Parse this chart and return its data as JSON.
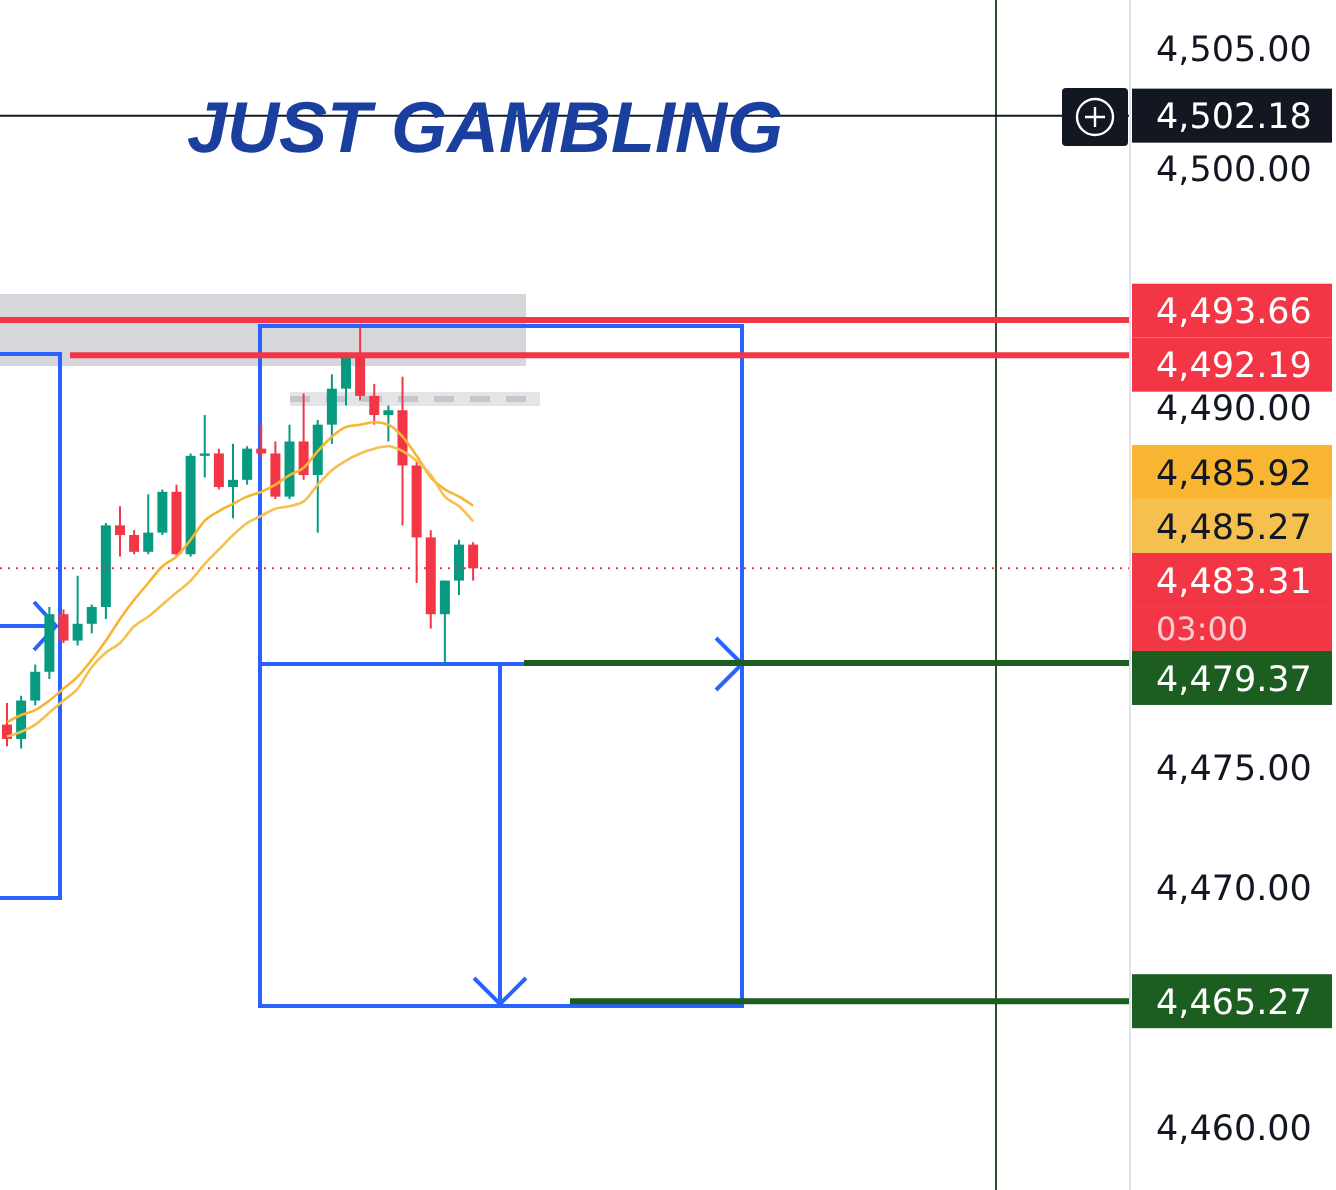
{
  "chart_data": {
    "type": "candlestick",
    "title": "JUST GAMBLING",
    "categories": [
      null,
      null,
      null,
      null,
      null,
      null,
      null,
      null,
      null,
      null,
      null,
      null,
      null,
      null,
      null,
      null,
      null,
      null,
      null,
      null,
      null,
      null,
      null,
      null,
      null,
      null,
      null,
      null,
      null,
      null,
      null,
      null,
      null,
      null,
      null,
      null,
      null,
      null,
      null,
      null,
      null,
      null,
      null,
      null,
      null,
      null,
      null,
      null,
      null,
      null,
      null,
      null,
      null,
      null,
      null,
      null,
      null,
      null,
      null,
      null,
      null,
      null,
      null,
      null,
      null,
      null,
      null,
      null,
      null,
      null,
      null,
      null,
      null,
      null,
      null,
      null,
      null,
      null,
      null,
      null
    ],
    "ohlc": [
      [
        4476.8,
        4477.7,
        4475.9,
        4476.2
      ],
      [
        4476.2,
        4478.0,
        4475.8,
        4477.8
      ],
      [
        4477.8,
        4479.3,
        4477.6,
        4479.0
      ],
      [
        4479.0,
        4481.7,
        4478.7,
        4481.4
      ],
      [
        4481.4,
        4481.6,
        4480.2,
        4480.3
      ],
      [
        4480.3,
        4483.0,
        4480.1,
        4481.0
      ],
      [
        4481.0,
        4481.8,
        4480.6,
        4481.7
      ],
      [
        4481.7,
        4485.2,
        4481.2,
        4485.1
      ],
      [
        4485.1,
        4485.9,
        4483.8,
        4484.7
      ],
      [
        4484.7,
        4484.9,
        4483.9,
        4484.0
      ],
      [
        4484.0,
        4486.4,
        4483.9,
        4484.8
      ],
      [
        4484.8,
        4486.6,
        4484.7,
        4486.5
      ],
      [
        4486.5,
        4486.8,
        4483.8,
        4483.9
      ],
      [
        4483.9,
        4488.1,
        4483.8,
        4488.0
      ],
      [
        4488.0,
        4489.7,
        4487.1,
        4488.1
      ],
      [
        4488.1,
        4488.3,
        4486.6,
        4486.7
      ],
      [
        4486.7,
        4488.5,
        4485.4,
        4487.0
      ],
      [
        4487.0,
        4488.4,
        4486.8,
        4488.3
      ],
      [
        4488.3,
        4489.3,
        4487.9,
        4488.1
      ],
      [
        4488.1,
        4488.6,
        4486.2,
        4486.3
      ],
      [
        4486.3,
        4489.3,
        4486.2,
        4488.6
      ],
      [
        4488.6,
        4490.6,
        4487.0,
        4487.2
      ],
      [
        4487.2,
        4489.5,
        4484.8,
        4489.3
      ],
      [
        4489.3,
        4491.4,
        4488.5,
        4490.8
      ],
      [
        4490.8,
        4492.3,
        4490.1,
        4492.1
      ],
      [
        4492.1,
        4493.4,
        4490.3,
        4490.5
      ],
      [
        4490.5,
        4491.0,
        4489.3,
        4489.7
      ],
      [
        4489.7,
        4490.1,
        4488.6,
        4489.9
      ],
      [
        4489.9,
        4491.3,
        4485.1,
        4487.6
      ],
      [
        4487.6,
        4487.8,
        4482.7,
        4484.6
      ],
      [
        4484.6,
        4484.9,
        4480.8,
        4481.4
      ],
      [
        4481.4,
        4482.8,
        4479.37,
        4482.8
      ],
      [
        4482.8,
        4484.5,
        4482.2,
        4484.3
      ],
      [
        4484.3,
        4484.4,
        4482.8,
        4483.31
      ],
      null,
      null,
      null,
      null,
      null,
      null,
      null,
      null,
      null,
      null,
      null,
      null,
      null,
      null,
      null,
      null,
      null,
      null,
      null,
      null,
      null,
      null,
      null,
      null,
      null,
      null,
      null,
      null,
      null,
      null,
      null,
      null,
      null,
      null,
      null,
      null,
      null,
      null,
      null,
      null,
      null,
      null,
      null,
      null,
      null,
      null
    ],
    "colors": [
      "#f23645",
      "#089981",
      "#089981",
      "#089981",
      "#f23645",
      "#089981",
      "#089981",
      "#089981",
      "#f23645",
      "#f23645",
      "#089981",
      "#089981",
      "#f23645",
      "#089981",
      "#089981",
      "#f23645",
      "#089981",
      "#089981",
      "#f23645",
      "#f23645",
      "#089981",
      "#f23645",
      "#089981",
      "#089981",
      "#089981",
      "#f23645",
      "#f23645",
      "#089981",
      "#f23645",
      "#f23645",
      "#f23645",
      "#089981",
      "#089981",
      "#f23645",
      null,
      null,
      null,
      null,
      null,
      null,
      null,
      null,
      null,
      null,
      null,
      null,
      null,
      null,
      null,
      null,
      null,
      null,
      null,
      null,
      null,
      null,
      null,
      null,
      null,
      null,
      null,
      null,
      null,
      null,
      null,
      null,
      null,
      null,
      null,
      null,
      null,
      null,
      null,
      null,
      null,
      null,
      null,
      null,
      null,
      null
    ],
    "series": [
      {
        "type": "line",
        "color": "#f7b531",
        "values": [
          4476.9,
          4477.2,
          4477.4,
          4477.8,
          4478.3,
          4478.8,
          4479.5,
          4480.3,
          4481.2,
          4482.0,
          4482.7,
          4483.4,
          4483.8,
          4484.5,
          4485.3,
          4485.7,
          4486.0,
          4486.3,
          4486.5,
          4486.8,
          4487.2,
          4487.5,
          4488.2,
          4488.8,
          4489.2,
          4489.3,
          4489.4,
          4489.3,
          4488.8,
          4488.0,
          4487.1,
          4486.6,
          4486.3,
          4485.92,
          null,
          null,
          null,
          null,
          null,
          null,
          null,
          null,
          null,
          null,
          null,
          null,
          null,
          null,
          null,
          null,
          null,
          null,
          null,
          null,
          null,
          null,
          null,
          null,
          null,
          null,
          null,
          null,
          null,
          null,
          null,
          null,
          null,
          null,
          null,
          null,
          null,
          null,
          null,
          null,
          null,
          null,
          null,
          null,
          null,
          null
        ]
      },
      {
        "type": "line",
        "color": "#f5c04e",
        "values": [
          4476.3,
          4476.5,
          4476.8,
          4477.3,
          4477.8,
          4478.3,
          4479.2,
          4479.8,
          4480.2,
          4480.9,
          4481.3,
          4481.8,
          4482.3,
          4482.8,
          4483.5,
          4484.1,
          4484.7,
          4485.2,
          4485.5,
          4485.8,
          4485.9,
          4486.1,
          4486.8,
          4487.4,
          4487.8,
          4488.1,
          4488.3,
          4488.4,
          4488.2,
          4487.8,
          4487.2,
          4486.3,
          4485.9,
          4485.27,
          null,
          null,
          null,
          null,
          null,
          null,
          null,
          null,
          null,
          null,
          null,
          null,
          null,
          null,
          null,
          null,
          null,
          null,
          null,
          null,
          null,
          null,
          null,
          null,
          null,
          null,
          null,
          null,
          null,
          null,
          null,
          null,
          null,
          null,
          null,
          null,
          null,
          null,
          null,
          null,
          null,
          null,
          null,
          null,
          null,
          null
        ]
      }
    ],
    "ylim": [
      4457.4,
      4507
    ],
    "yticks": [
      {
        "value": 4460,
        "label": "4,460.00"
      },
      {
        "value": 4470,
        "label": "4,470.00"
      },
      {
        "value": 4475,
        "label": "4,475.00"
      },
      {
        "value": 4490,
        "label": "4,490.00"
      },
      {
        "value": 4500,
        "label": "4,500.00"
      },
      {
        "value": 4505,
        "label": "4,505.00"
      }
    ],
    "tick_labels": "y",
    "ref_lines": [
      {
        "axis": "y",
        "value": 4502.18,
        "label": "4,502.18",
        "color": "#131722"
      },
      {
        "axis": "y",
        "value": 4493.66,
        "label": "4,493.66",
        "color": "#f23645"
      },
      {
        "axis": "y",
        "value": 4492.19,
        "label": "4,492.19",
        "color": "#f23645"
      },
      {
        "axis": "y",
        "value": 4483.31,
        "label": "4,483.31",
        "color": "#f23645",
        "line_style": "dotted"
      },
      {
        "axis": "y",
        "value": 4479.37,
        "label": "4,479.37",
        "color": "#1b5e20"
      },
      {
        "axis": "y",
        "value": 4465.27,
        "label": "4,465.27",
        "color": "#1b5e20"
      }
    ],
    "annotations": [
      "4,485.92",
      "4,485.27",
      "03:00"
    ]
  }
}
